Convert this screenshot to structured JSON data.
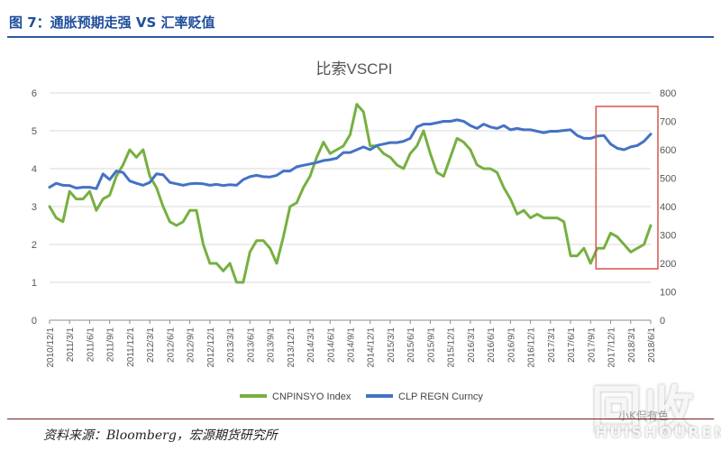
{
  "header": {
    "title": "图 7：通胀预期走强 VS 汇率贬值"
  },
  "footer": {
    "source": "资料来源：Bloomberg，宏源期货研究所"
  },
  "watermark": {
    "logo_main": "回收",
    "logo_sub": "HUISHOUREN",
    "account": "小K侃有色"
  },
  "colors": {
    "green": "#76b041",
    "blue": "#4472c4",
    "highlight_box": "#d9534f",
    "axis": "#8c8c8c",
    "gridline": "#d9d9d9"
  },
  "chart_data": {
    "type": "line",
    "title": "比索VSCPI",
    "grid": true,
    "legend_position": "bottom",
    "x_labels": [
      "2010/12/1",
      "2011/3/1",
      "2011/6/1",
      "2011/9/1",
      "2011/12/1",
      "2012/3/1",
      "2012/6/1",
      "2012/9/1",
      "2012/12/1",
      "2013/3/1",
      "2013/6/1",
      "2013/9/1",
      "2013/12/1",
      "2014/3/1",
      "2014/6/1",
      "2014/9/1",
      "2014/12/1",
      "2015/3/1",
      "2015/6/1",
      "2015/9/1",
      "2015/12/1",
      "2016/3/1",
      "2016/6/1",
      "2016/9/1",
      "2016/12/1",
      "2017/3/1",
      "2017/6/1",
      "2017/9/1",
      "2017/12/1",
      "2018/3/1",
      "2018/6/1"
    ],
    "y_left": {
      "min": 0,
      "max": 6,
      "ticks": [
        "0",
        "1",
        "2",
        "3",
        "4",
        "5",
        "6"
      ]
    },
    "y_right": {
      "min": 0,
      "max": 800,
      "ticks": [
        "0",
        "100",
        "200",
        "300",
        "400",
        "500",
        "600",
        "700",
        "800"
      ]
    },
    "series": [
      {
        "name": "CNPINSYO Index",
        "axis": "left",
        "color": "#76b041",
        "values": [
          3.0,
          2.7,
          2.6,
          3.4,
          3.2,
          3.2,
          3.4,
          2.9,
          3.2,
          3.3,
          3.8,
          4.1,
          4.5,
          4.3,
          4.5,
          3.8,
          3.5,
          3.0,
          2.6,
          2.5,
          2.6,
          2.9,
          2.9,
          2.0,
          1.5,
          1.5,
          1.3,
          1.5,
          1.0,
          1.0,
          1.8,
          2.1,
          2.1,
          1.9,
          1.5,
          2.2,
          3.0,
          3.1,
          3.5,
          3.8,
          4.3,
          4.7,
          4.4,
          4.5,
          4.6,
          4.9,
          5.7,
          5.5,
          4.6,
          4.6,
          4.4,
          4.3,
          4.1,
          4.0,
          4.4,
          4.6,
          5.0,
          4.4,
          3.9,
          3.8,
          4.3,
          4.8,
          4.7,
          4.5,
          4.1,
          4.0,
          4.0,
          3.9,
          3.5,
          3.2,
          2.8,
          2.9,
          2.7,
          2.8,
          2.7,
          2.7,
          2.7,
          2.6,
          1.7,
          1.7,
          1.9,
          1.5,
          1.9,
          1.9,
          2.3,
          2.2,
          2.0,
          1.8,
          1.9,
          2.0,
          2.5
        ]
      },
      {
        "name": "CLP REGN Curncy",
        "axis": "right",
        "color": "#4472c4",
        "values": [
          468,
          482,
          475,
          474,
          465,
          468,
          468,
          463,
          515,
          495,
          525,
          520,
          490,
          482,
          475,
          485,
          515,
          512,
          485,
          480,
          475,
          480,
          482,
          480,
          475,
          478,
          474,
          477,
          475,
          495,
          505,
          510,
          505,
          504,
          510,
          525,
          525,
          540,
          545,
          550,
          555,
          562,
          565,
          570,
          590,
          590,
          600,
          610,
          600,
          615,
          620,
          625,
          625,
          630,
          640,
          680,
          690,
          690,
          695,
          700,
          700,
          705,
          700,
          685,
          675,
          690,
          680,
          675,
          685,
          670,
          675,
          670,
          670,
          665,
          660,
          665,
          665,
          668,
          670,
          650,
          640,
          640,
          648,
          650,
          620,
          605,
          600,
          610,
          615,
          630,
          655
        ]
      }
    ],
    "highlight_range": {
      "from": "2017/9/1",
      "to": "2018/6/1"
    }
  }
}
